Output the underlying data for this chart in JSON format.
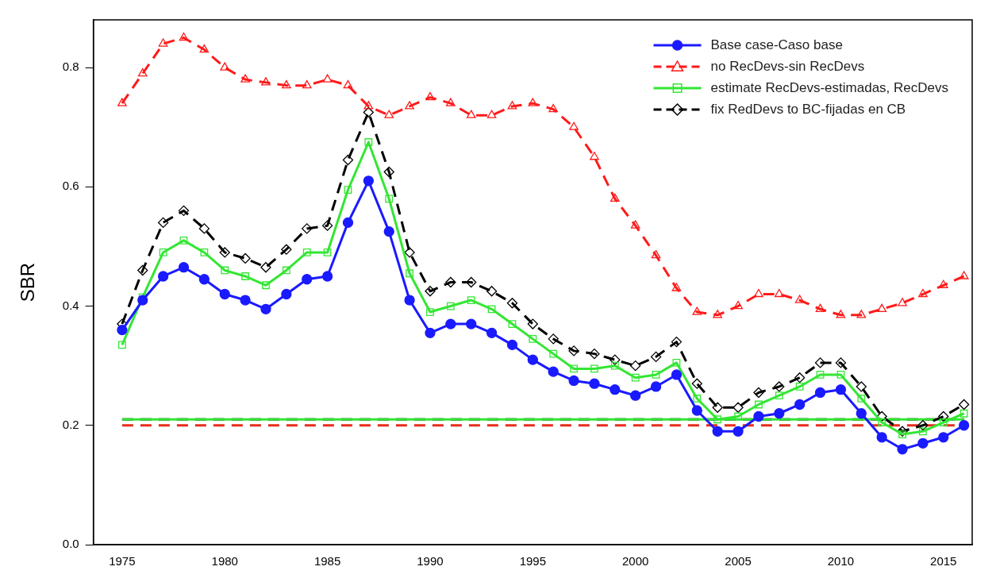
{
  "chart_data": {
    "type": "line",
    "ylabel": "SBR",
    "x": [
      1975,
      1976,
      1977,
      1978,
      1979,
      1980,
      1981,
      1982,
      1983,
      1984,
      1985,
      1986,
      1987,
      1988,
      1989,
      1990,
      1991,
      1992,
      1993,
      1994,
      1995,
      1996,
      1997,
      1998,
      1999,
      2000,
      2001,
      2002,
      2003,
      2004,
      2005,
      2006,
      2007,
      2008,
      2009,
      2010,
      2011,
      2012,
      2013,
      2014,
      2015,
      2016
    ],
    "xlim": [
      1973.6,
      2016.4
    ],
    "xticks": [
      1975,
      1980,
      1985,
      1990,
      1995,
      2000,
      2005,
      2010,
      2015
    ],
    "ylim": [
      0,
      0.88
    ],
    "yticks": [
      {
        "value": 0,
        "label": "0.0"
      },
      0.2,
      0.4,
      0.6,
      0.8
    ],
    "grid": false,
    "legend": "top right",
    "series": [
      {
        "name": "Base case-Caso base",
        "color": "#1a1aff",
        "marker": "circle",
        "line_style": "solid",
        "values": [
          0.36,
          0.41,
          0.45,
          0.465,
          0.445,
          0.42,
          0.41,
          0.395,
          0.42,
          0.445,
          0.45,
          0.54,
          0.61,
          0.525,
          0.41,
          0.355,
          0.37,
          0.37,
          0.355,
          0.335,
          0.31,
          0.29,
          0.275,
          0.27,
          0.26,
          0.25,
          0.265,
          0.285,
          0.225,
          0.19,
          0.19,
          0.215,
          0.22,
          0.235,
          0.255,
          0.26,
          0.22,
          0.18,
          0.16,
          0.17,
          0.18,
          0.2
        ]
      },
      {
        "name": "no RecDevs-sin RecDevs",
        "color": "#ff1a1a",
        "marker": "triangle",
        "line_style": "dashed",
        "values": [
          0.74,
          0.79,
          0.84,
          0.85,
          0.83,
          0.8,
          0.78,
          0.775,
          0.77,
          0.77,
          0.78,
          0.77,
          0.735,
          0.72,
          0.735,
          0.75,
          0.74,
          0.72,
          0.72,
          0.735,
          0.74,
          0.73,
          0.7,
          0.65,
          0.58,
          0.535,
          0.485,
          0.43,
          0.39,
          0.385,
          0.4,
          0.42,
          0.42,
          0.41,
          0.395,
          0.385,
          0.385,
          0.395,
          0.405,
          0.42,
          0.435,
          0.45
        ]
      },
      {
        "name": "estimate RecDevs-estimadas, RecDevs",
        "color": "#33e633",
        "marker": "square",
        "line_style": "solid",
        "values": [
          0.335,
          0.415,
          0.49,
          0.51,
          0.49,
          0.46,
          0.45,
          0.435,
          0.46,
          0.49,
          0.49,
          0.595,
          0.675,
          0.58,
          0.455,
          0.39,
          0.4,
          0.41,
          0.395,
          0.37,
          0.345,
          0.32,
          0.295,
          0.295,
          0.3,
          0.28,
          0.285,
          0.305,
          0.245,
          0.21,
          0.215,
          0.235,
          0.25,
          0.265,
          0.285,
          0.285,
          0.245,
          0.205,
          0.185,
          0.19,
          0.205,
          0.22
        ]
      },
      {
        "name": "fix RedDevs to BC-fijadas en CB",
        "color": "#000000",
        "marker": "diamond",
        "line_style": "dashed",
        "values": [
          0.37,
          0.46,
          0.54,
          0.56,
          0.53,
          0.49,
          0.48,
          0.465,
          0.495,
          0.53,
          0.535,
          0.645,
          0.725,
          0.625,
          0.49,
          0.425,
          0.44,
          0.44,
          0.425,
          0.405,
          0.37,
          0.345,
          0.325,
          0.32,
          0.31,
          0.3,
          0.315,
          0.34,
          0.27,
          0.23,
          0.23,
          0.255,
          0.265,
          0.28,
          0.305,
          0.305,
          0.265,
          0.215,
          0.19,
          0.2,
          0.215,
          0.235
        ]
      }
    ],
    "ref_lines": [
      {
        "axis": "y",
        "value": 0.21,
        "color": "#000000",
        "line_style": "dashed"
      },
      {
        "axis": "y",
        "value": 0.21,
        "color": "#33e633",
        "line_style": "solid"
      },
      {
        "axis": "y",
        "value": 0.2,
        "color": "#e62e1a",
        "line_style": "dashed"
      }
    ]
  }
}
